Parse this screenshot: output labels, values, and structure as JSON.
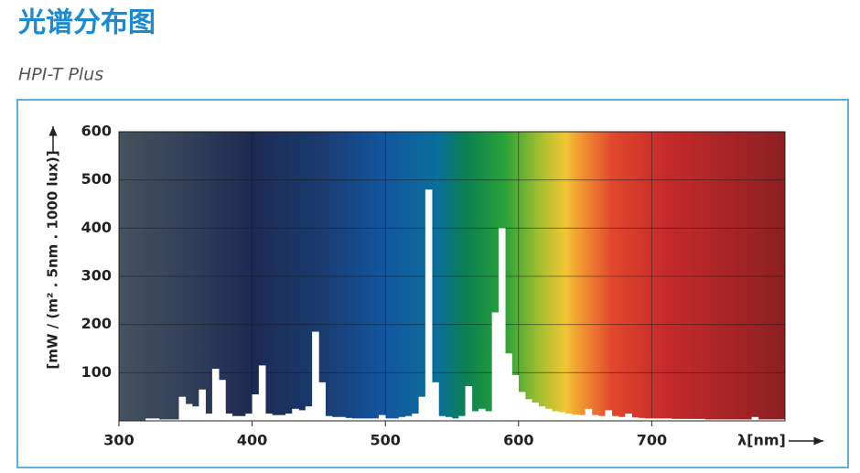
{
  "chart_data": {
    "type": "histogram",
    "title": "光谱分布图",
    "subtitle": "HPI-T Plus",
    "ylabel": "[mW / (m² . 5nm . 1000 lux)]",
    "xlabel": "λ[nm]",
    "bins": [
      300,
      305,
      310,
      315,
      320,
      325,
      330,
      335,
      340,
      345,
      350,
      355,
      360,
      365,
      370,
      375,
      380,
      385,
      390,
      395,
      400,
      405,
      410,
      415,
      420,
      425,
      430,
      435,
      440,
      445,
      450,
      455,
      460,
      465,
      470,
      475,
      480,
      485,
      490,
      495,
      500,
      505,
      510,
      515,
      520,
      525,
      530,
      535,
      540,
      545,
      550,
      555,
      560,
      565,
      570,
      575,
      580,
      585,
      590,
      595,
      600,
      605,
      610,
      615,
      620,
      625,
      630,
      635,
      640,
      645,
      650,
      655,
      660,
      665,
      670,
      675,
      680,
      685,
      690,
      695,
      700,
      705,
      710,
      715,
      720,
      725,
      730,
      735,
      740,
      745,
      750,
      755,
      760,
      765,
      770,
      775,
      780,
      785,
      790,
      795,
      800
    ],
    "values": [
      0,
      0,
      0,
      0,
      5,
      5,
      3,
      3,
      3,
      50,
      35,
      30,
      65,
      15,
      108,
      85,
      15,
      10,
      10,
      15,
      55,
      115,
      15,
      12,
      12,
      15,
      25,
      22,
      30,
      185,
      80,
      10,
      8,
      8,
      6,
      5,
      5,
      5,
      5,
      12,
      5,
      5,
      8,
      10,
      15,
      50,
      480,
      80,
      10,
      8,
      5,
      10,
      72,
      20,
      25,
      20,
      225,
      400,
      140,
      95,
      60,
      45,
      38,
      30,
      25,
      20,
      18,
      15,
      13,
      12,
      25,
      12,
      10,
      22,
      10,
      8,
      15,
      7,
      6,
      5,
      5,
      5,
      5,
      4,
      4,
      4,
      4,
      4,
      3,
      3,
      3,
      3,
      3,
      3,
      3,
      8,
      3,
      3,
      3,
      3
    ],
    "color": "#ffffff",
    "xlim": [
      300,
      800
    ],
    "ylim": [
      0,
      600
    ],
    "xticks": [
      300,
      400,
      500,
      600,
      700
    ],
    "yticks": [
      100,
      200,
      300,
      400,
      500,
      600
    ],
    "grid": true
  }
}
